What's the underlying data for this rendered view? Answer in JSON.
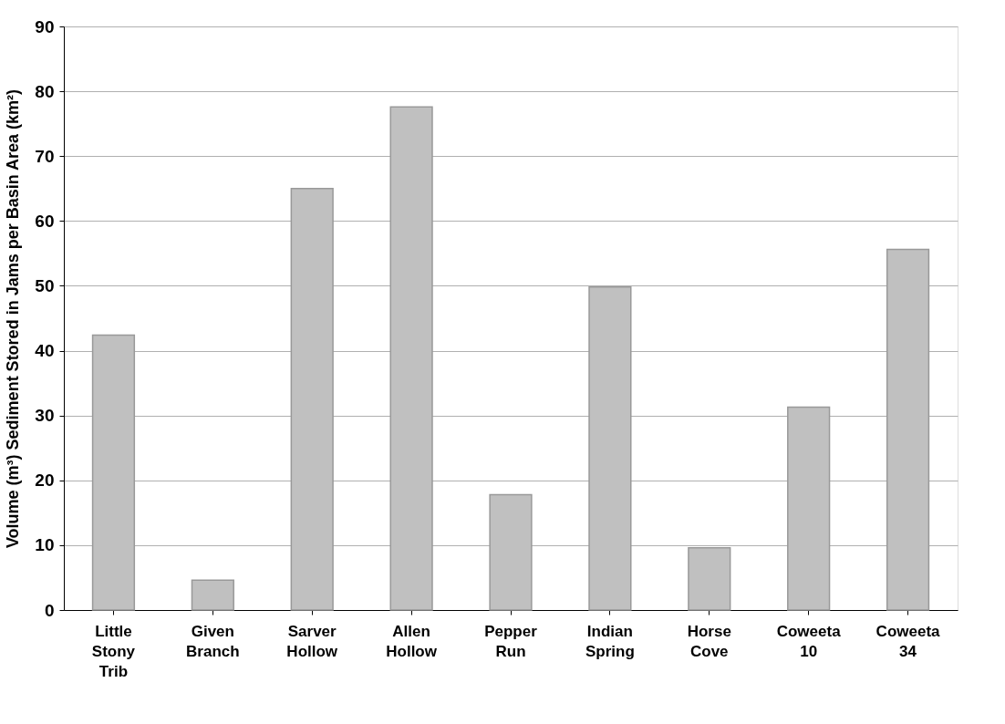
{
  "chart_data": {
    "type": "bar",
    "ylabel": "Volume (m³) Sediment Stored in Jams per Basin Area (km²)",
    "categories": [
      "Little Stony Trib",
      "Given Branch",
      "Sarver Hollow",
      "Allen Hollow",
      "Pepper Run",
      "Indian Spring",
      "Horse Cove",
      "Coweeta 10",
      "Coweeta 34"
    ],
    "values": [
      42.4,
      4.6,
      65,
      77.6,
      17.8,
      49.8,
      9.6,
      31.3,
      55.6
    ],
    "color": "#c0c0c0",
    "ylim": [
      0,
      90
    ],
    "yticks": [
      0,
      10,
      20,
      30,
      40,
      50,
      60,
      70,
      80,
      90
    ],
    "grid": "y"
  }
}
